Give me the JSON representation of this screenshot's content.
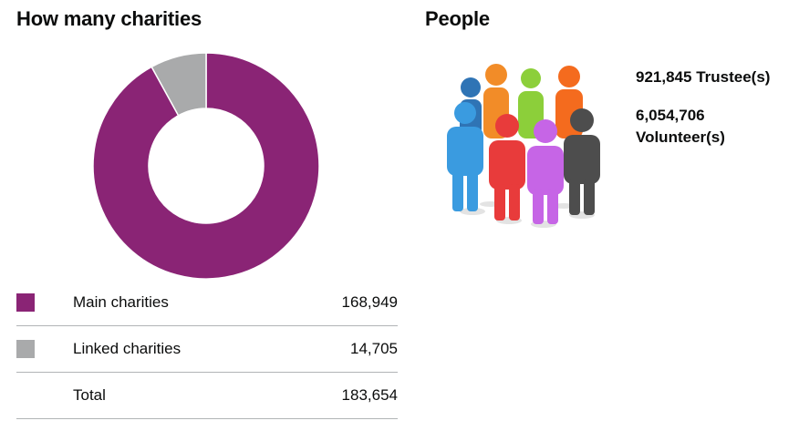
{
  "charities_section": {
    "title": "How many charities"
  },
  "chart_data": {
    "type": "pie",
    "title": "How many charities",
    "categories": [
      "Main charities",
      "Linked charities"
    ],
    "values": [
      168949,
      14705
    ],
    "colors": [
      "#8a2475",
      "#a9aaab"
    ],
    "total_label": "Total",
    "total": 183654,
    "display_values": [
      "168,949",
      "14,705"
    ],
    "total_display": "183,654",
    "legend_placement": "bottom"
  },
  "people_section": {
    "title": "People",
    "trustees_value": "921,845",
    "trustees_label": "Trustee(s)",
    "volunteers_value": "6,054,706",
    "volunteers_label": "Volunteer(s)",
    "illustration_icon": "group-of-people-icon"
  }
}
